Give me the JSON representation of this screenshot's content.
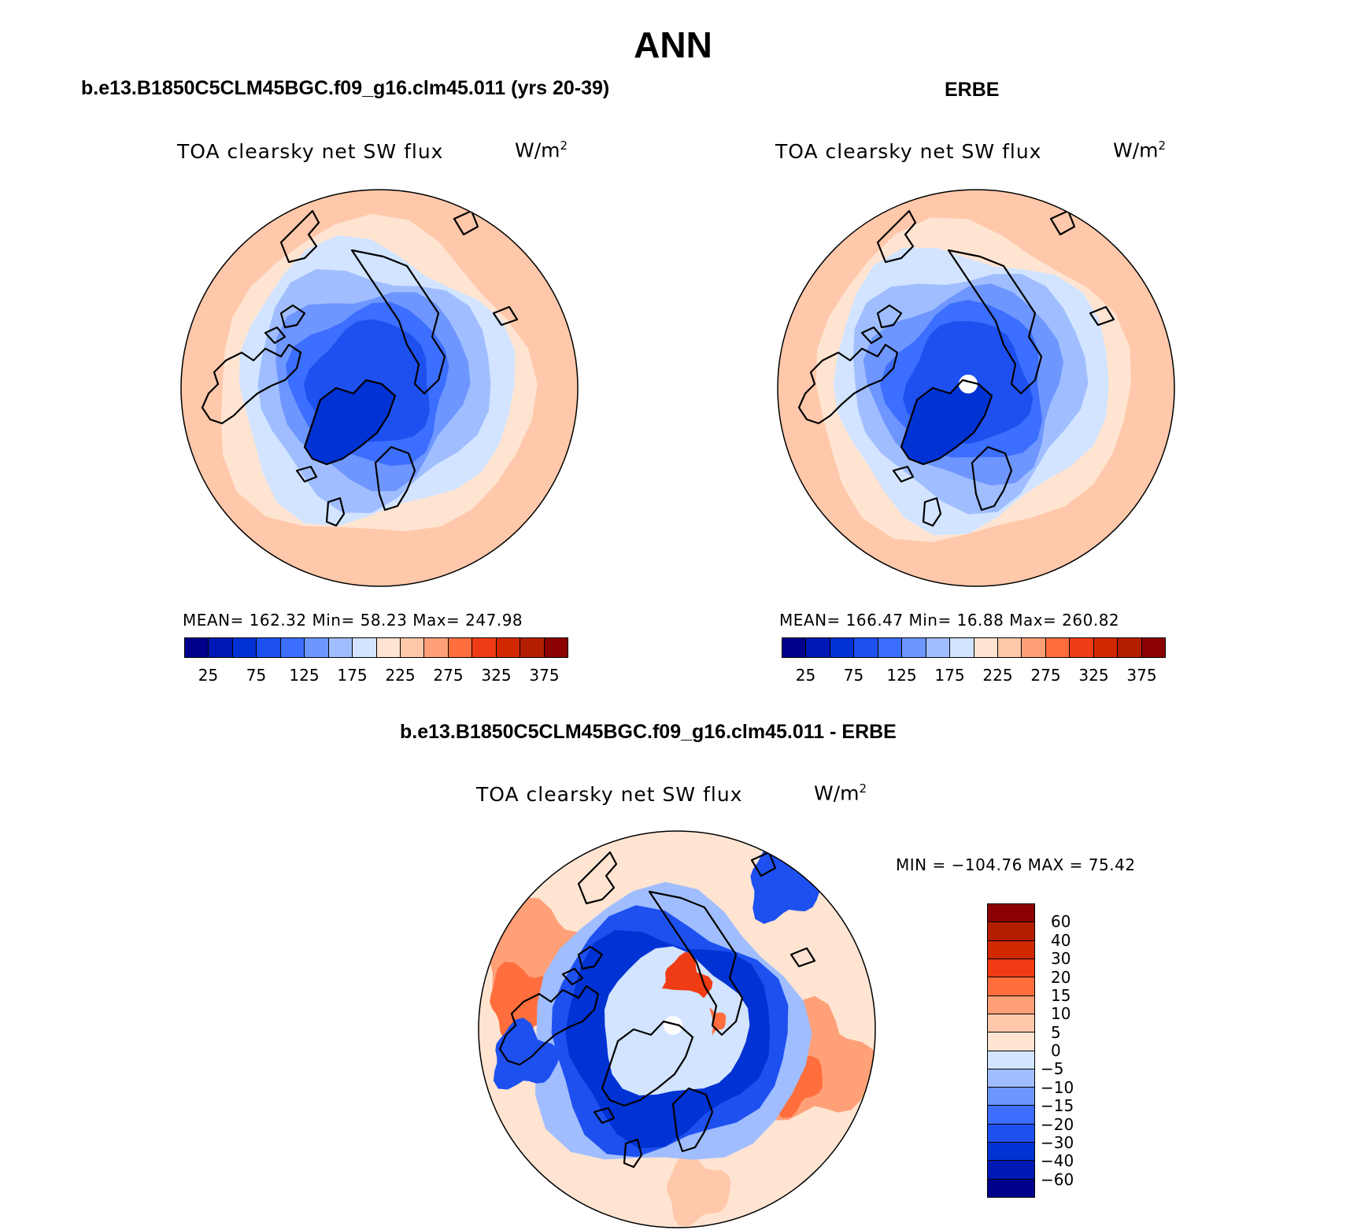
{
  "page": {
    "title": "ANN"
  },
  "panels": [
    {
      "id": "model",
      "title": "b.e13.B1850C5CLM45BGC.f09_g16.clm45.011 (yrs 20-39)",
      "variable": "TOA clearsky net SW flux",
      "units_base": "W/m",
      "units_exp": "2",
      "stats": "MEAN= 162.32   Min=   58.23   Max= 247.98"
    },
    {
      "id": "obs",
      "title": "ERBE",
      "variable": "TOA clearsky net SW flux",
      "units_base": "W/m",
      "units_exp": "2",
      "stats": "MEAN= 166.47   Min=   16.88   Max= 260.82"
    },
    {
      "id": "diff",
      "title": "b.e13.B1850C5CLM45BGC.f09_g16.clm45.011 - ERBE",
      "variable": "TOA clearsky net SW flux",
      "units_base": "W/m",
      "units_exp": "2",
      "stats": "MIN = −104.76 MAX =   75.42"
    }
  ],
  "colorbars": {
    "absolute": {
      "colors": [
        "#00008b",
        "#0019b4",
        "#0032d4",
        "#1e50f0",
        "#3c6eff",
        "#6e96ff",
        "#a0beff",
        "#d2e4ff",
        "#ffe4d2",
        "#ffc8aa",
        "#ffa078",
        "#ff6e3c",
        "#f03c14",
        "#d22800",
        "#b41e00",
        "#8b0000"
      ],
      "ticks": [
        "25",
        "75",
        "125",
        "175",
        "225",
        "275",
        "325",
        "375"
      ]
    },
    "difference": {
      "colors": [
        "#00008b",
        "#0019b4",
        "#0032d4",
        "#1e50f0",
        "#3c6eff",
        "#6e96ff",
        "#a0beff",
        "#d2e4ff",
        "#ffe4d2",
        "#ffc8aa",
        "#ffa078",
        "#ff6e3c",
        "#f03c14",
        "#d22800",
        "#b41e00",
        "#8b0000"
      ],
      "ticks": [
        "−60",
        "−40",
        "−30",
        "−20",
        "−15",
        "−10",
        "−5",
        "0",
        "5",
        "10",
        "15",
        "20",
        "30",
        "40",
        "60"
      ]
    }
  },
  "maps": {
    "projection": "north polar stereographic",
    "coastline_color": "#000000",
    "model_colors": {
      "outer": "#ffc8aa",
      "ring2": "#ffe4d2",
      "ring3": "#d2e4ff",
      "ring4": "#a0beff",
      "ring5": "#6e96ff",
      "ring6": "#3c6eff",
      "core": "#1e50f0",
      "greenland": "#0032d4"
    },
    "obs_colors": {
      "outer": "#ffc8aa",
      "ring2": "#ffe4d2",
      "ring3": "#d2e4ff",
      "ring4": "#a0beff",
      "ring5": "#6e96ff",
      "ring6": "#3c6eff",
      "core": "#1e50f0",
      "greenland": "#0032d4",
      "pole": "#ffffff"
    },
    "diff_colors": {
      "base": "#ffe4d2",
      "pos1": "#ffc8aa",
      "pos2": "#ffa078",
      "pos3": "#ff6e3c",
      "pos4": "#f03c14",
      "neg1": "#d2e4ff",
      "neg2": "#a0beff",
      "neg3": "#3c6eff",
      "neg4": "#1e50f0",
      "neg5": "#0032d4",
      "pole": "#ffffff"
    }
  }
}
